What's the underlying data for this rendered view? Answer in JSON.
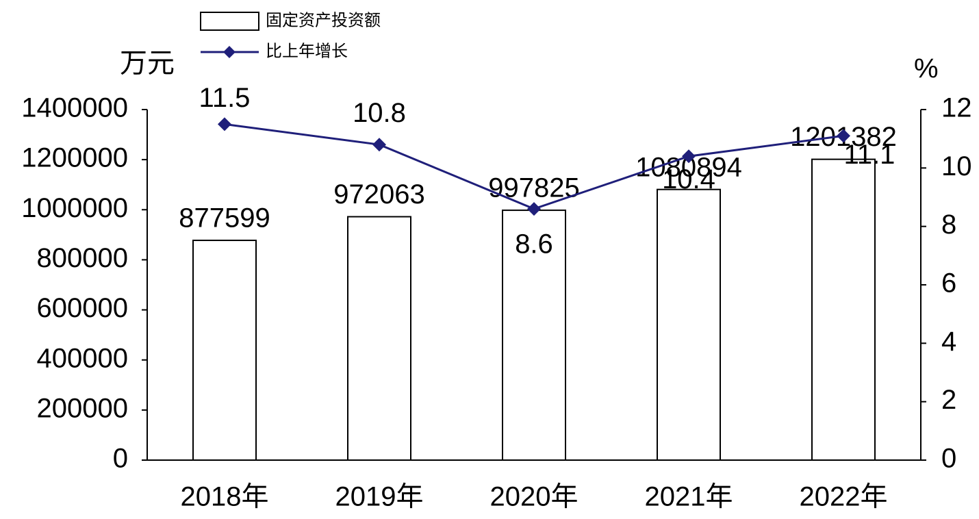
{
  "chart_data": {
    "type": "bar",
    "y_label": "万元",
    "y2_label": "%",
    "categories": [
      "2018年",
      "2019年",
      "2020年",
      "2021年",
      "2022年"
    ],
    "series": [
      {
        "name": "固定资产投资额",
        "type": "bar",
        "color": "#ffffff",
        "values": [
          877599,
          972063,
          997825,
          1080894,
          1201382
        ]
      },
      {
        "name": "比上年增长",
        "type": "line",
        "axis": "y2",
        "color": "#1f1f7a",
        "values": [
          11.5,
          10.8,
          8.6,
          10.4,
          11.1
        ]
      }
    ],
    "ylim": [
      0,
      1400000
    ],
    "yticks": [
      0,
      200000,
      400000,
      600000,
      800000,
      1000000,
      1200000,
      1400000
    ],
    "y2lim": [
      0,
      12
    ],
    "y2ticks": [
      0,
      2,
      4,
      6,
      8,
      10,
      12
    ],
    "grid": false
  }
}
